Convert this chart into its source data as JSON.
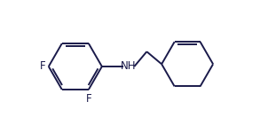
{
  "bond_color": "#1a1a4a",
  "bg_color": "#ffffff",
  "line_width": 1.4,
  "font_size": 8.5,
  "font_color": "#1a1a4a",
  "figsize": [
    3.11,
    1.5
  ],
  "dpi": 100,
  "xlim": [
    0.2,
    9.0
  ],
  "ylim": [
    1.0,
    4.5
  ]
}
